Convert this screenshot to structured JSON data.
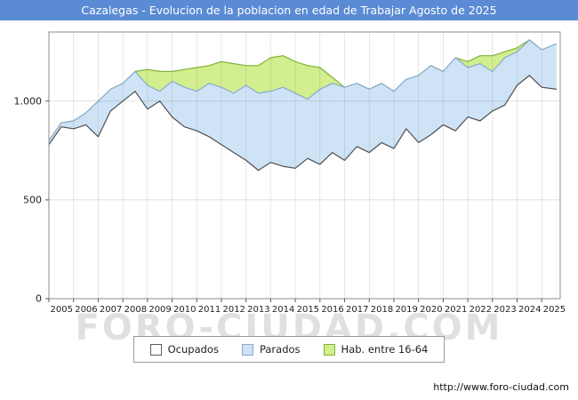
{
  "title": "Cazalegas - Evolucion de la poblacion en edad de Trabajar Agosto de 2025",
  "watermark": "FORO-CIUDAD.COM",
  "footer_url": "http://www.foro-ciudad.com",
  "colors": {
    "titlebar_bg": "#5b8bd4",
    "titlebar_text": "#ffffff",
    "plot_border": "#8c8c8c",
    "gridline": "rgba(110,110,110,0.28)"
  },
  "legend": {
    "items": [
      {
        "label": "Ocupados",
        "fill": "#ffffff",
        "stroke": "#5a5a5a"
      },
      {
        "label": "Parados",
        "fill": "#cfe3f6",
        "stroke": "#86abd1"
      },
      {
        "label": "Hab. entre 16-64",
        "fill": "#d2ee8e",
        "stroke": "#7fb23a"
      }
    ]
  },
  "chart_data": {
    "type": "area",
    "title": "Cazalegas - Evolucion de la poblacion en edad de Trabajar Agosto de 2025",
    "xlabel": "",
    "ylabel": "",
    "xlim": [
      2005,
      2025.75
    ],
    "ylim": [
      0,
      1350
    ],
    "yticks": [
      0,
      500,
      1000
    ],
    "ytick_labels": [
      "0",
      "500",
      "1.000"
    ],
    "xticks": [
      2005,
      2006,
      2007,
      2008,
      2009,
      2010,
      2011,
      2012,
      2013,
      2014,
      2015,
      2016,
      2017,
      2018,
      2019,
      2020,
      2021,
      2022,
      2023,
      2024,
      2025
    ],
    "grid": true,
    "legend_position": "bottom",
    "x": [
      2005,
      2005.5,
      2006,
      2006.5,
      2007,
      2007.5,
      2008,
      2008.5,
      2009,
      2009.5,
      2010,
      2010.5,
      2011,
      2011.5,
      2012,
      2012.5,
      2013,
      2013.5,
      2014,
      2014.5,
      2015,
      2015.5,
      2016,
      2016.5,
      2017,
      2017.5,
      2018,
      2018.5,
      2019,
      2019.5,
      2020,
      2020.5,
      2021,
      2021.5,
      2022,
      2022.5,
      2023,
      2023.5,
      2024,
      2024.5,
      2025,
      2025.6
    ],
    "series": [
      {
        "name": "Hab. entre 16-64",
        "fill": "#d2ee8e",
        "stroke": "#7fb23a",
        "values": [
          800,
          890,
          900,
          940,
          1000,
          1060,
          1090,
          1150,
          1160,
          1150,
          1150,
          1160,
          1170,
          1180,
          1200,
          1190,
          1180,
          1180,
          1220,
          1230,
          1200,
          1180,
          1170,
          1120,
          1070,
          1090,
          1060,
          1090,
          1050,
          1110,
          1130,
          1180,
          1150,
          1220,
          1200,
          1230,
          1230,
          1250,
          1270,
          1310,
          1260,
          1290
        ]
      },
      {
        "name": "Parados",
        "fill": "#cfe3f6",
        "stroke": "#86abd1",
        "values": [
          800,
          890,
          900,
          940,
          1000,
          1060,
          1090,
          1150,
          1080,
          1050,
          1100,
          1070,
          1050,
          1090,
          1070,
          1040,
          1080,
          1040,
          1050,
          1070,
          1040,
          1010,
          1060,
          1090,
          1070,
          1090,
          1060,
          1090,
          1050,
          1110,
          1130,
          1180,
          1150,
          1220,
          1170,
          1190,
          1150,
          1220,
          1250,
          1310,
          1260,
          1290
        ]
      },
      {
        "name": "Ocupados",
        "fill": "#ffffff",
        "stroke": "#4f4f4f",
        "values": [
          780,
          870,
          860,
          880,
          820,
          950,
          1000,
          1050,
          960,
          1000,
          920,
          870,
          850,
          820,
          780,
          740,
          700,
          650,
          690,
          670,
          660,
          710,
          680,
          740,
          700,
          770,
          740,
          790,
          760,
          860,
          790,
          830,
          880,
          850,
          920,
          900,
          950,
          980,
          1080,
          1130,
          1070,
          1060
        ]
      }
    ]
  }
}
